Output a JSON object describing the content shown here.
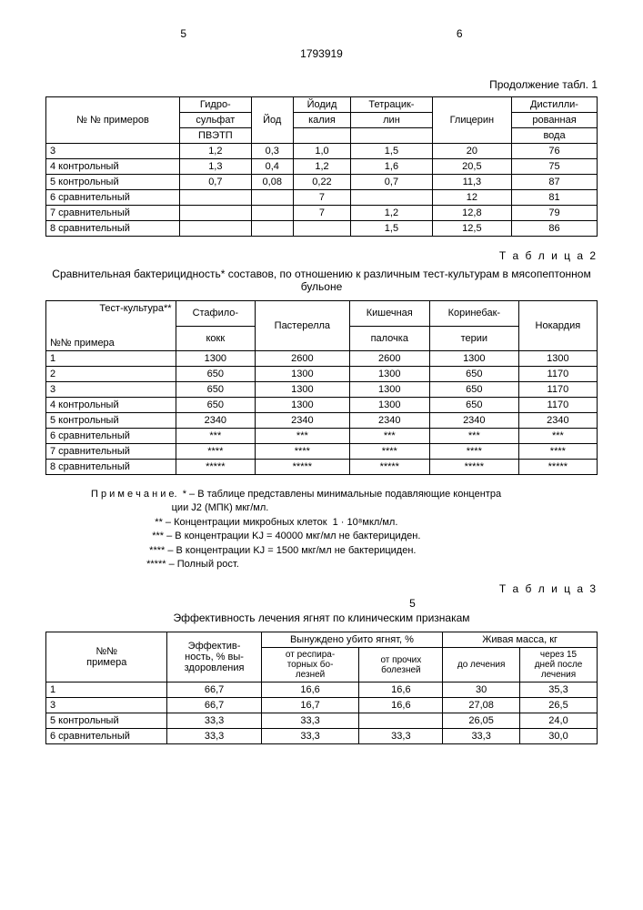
{
  "page": {
    "left_num": "5",
    "right_num": "6",
    "doc_id": "1793919",
    "continuation": "Продолжение табл. 1"
  },
  "table1": {
    "headers": {
      "col1": "№ № примеров",
      "col2_a": "Гидро-",
      "col2_b": "сульфат",
      "col2_c": "ПВЭТП",
      "col3": "Йод",
      "col4_a": "Йодид",
      "col4_b": "калия",
      "col5_a": "Тетрацик-",
      "col5_b": "лин",
      "col6": "Глицерин",
      "col7_a": "Дистилли-",
      "col7_b": "рованная",
      "col7_c": "вода"
    },
    "rows": [
      {
        "c1": "3",
        "c2": "1,2",
        "c3": "0,3",
        "c4": "1,0",
        "c5": "1,5",
        "c6": "20",
        "c7": "76"
      },
      {
        "c1": "4 контрольный",
        "c2": "1,3",
        "c3": "0,4",
        "c4": "1,2",
        "c5": "1,6",
        "c6": "20,5",
        "c7": "75"
      },
      {
        "c1": "5 контрольный",
        "c2": "0,7",
        "c3": "0,08",
        "c4": "0,22",
        "c5": "0,7",
        "c6": "11,3",
        "c7": "87"
      },
      {
        "c1": "6 сравнительный",
        "c2": "",
        "c3": "",
        "c4": "7",
        "c5": "",
        "c6": "12",
        "c7": "81"
      },
      {
        "c1": "7 сравнительный",
        "c2": "",
        "c3": "",
        "c4": "7",
        "c5": "1,2",
        "c6": "12,8",
        "c7": "79"
      },
      {
        "c1": "8 сравнительный",
        "c2": "",
        "c3": "",
        "c4": "",
        "c5": "1,5",
        "c6": "12,5",
        "c7": "86"
      }
    ]
  },
  "table2": {
    "label": "Т а б л и ц а 2",
    "caption": "Сравнительная  бактерицидность* составов,  по отношению к различным тест-культурам в мясопептонном бульоне",
    "diag_top": "Тест-культура**",
    "diag_bot": "№№ примера",
    "headers": {
      "c2_a": "Стафило-",
      "c2_b": "кокк",
      "c3": "Пастерелла",
      "c4_a": "Кишечная",
      "c4_b": "палочка",
      "c5_a": "Коринебак-",
      "c5_b": "терии",
      "c6": "Нокардия"
    },
    "rows": [
      {
        "c1": "1",
        "c2": "1300",
        "c3": "2600",
        "c4": "2600",
        "c5": "1300",
        "c6": "1300"
      },
      {
        "c1": "2",
        "c2": "650",
        "c3": "1300",
        "c4": "1300",
        "c5": "650",
        "c6": "1170"
      },
      {
        "c1": "3",
        "c2": "650",
        "c3": "1300",
        "c4": "1300",
        "c5": "650",
        "c6": "1170"
      },
      {
        "c1": "4 контрольный",
        "c2": "650",
        "c3": "1300",
        "c4": "1300",
        "c5": "650",
        "c6": "1170"
      },
      {
        "c1": "5 контрольный",
        "c2": "2340",
        "c3": "2340",
        "c4": "2340",
        "c5": "2340",
        "c6": "2340"
      },
      {
        "c1": "6 сравнительный",
        "c2": "***",
        "c3": "***",
        "c4": "***",
        "c5": "***",
        "c6": "***"
      },
      {
        "c1": "7 сравнительный",
        "c2": "****",
        "c3": "****",
        "c4": "****",
        "c5": "****",
        "c6": "****"
      },
      {
        "c1": "8 сравнительный",
        "c2": "*****",
        "c3": "*****",
        "c4": "*****",
        "c5": "*****",
        "c6": "*****"
      }
    ]
  },
  "notes": {
    "l1": "П р и м е ч а н и е.  * – В таблице представлены минимальные подавляющие концентра",
    "l2": "                             ции J2 (МПК) мкг/мл.",
    "l3": "                       ** – Концентрации микробных клеток  1 · 10⁸мкл/мл.",
    "l4": "                      *** – В концентрации KJ = 40000 мкг/мл не бактерициден.",
    "l5": "                     **** – В концентрации KJ = 1500 мкг/мл не бактерициден.",
    "l6": "                    ***** – Полный рост."
  },
  "table3": {
    "label": "Т а б л и ц а 3",
    "small5": "5",
    "caption": "Эффективность лечения ягнят по клиническим признакам",
    "headers": {
      "c1_a": "№№",
      "c1_b": "примера",
      "c2_a": "Эффектив-",
      "c2_b": "ность, % вы-",
      "c2_c": "здоровления",
      "c3_top": "Вынуждено убито ягнят, %",
      "c3a_a": "от респира-",
      "c3a_b": "торных бо-",
      "c3a_c": "лезней",
      "c3b_a": "от прочих",
      "c3b_b": "болезней",
      "c4_top": "Живая масса,  кг",
      "c4a": "до лечения",
      "c4b_a": "через 15",
      "c4b_b": "дней после",
      "c4b_c": "лечения"
    },
    "rows": [
      {
        "c1": "1",
        "c2": "66,7",
        "c3a": "16,6",
        "c3b": "16,6",
        "c4a": "30",
        "c4b": "35,3"
      },
      {
        "c1": "3",
        "c2": "66,7",
        "c3a": "16,7",
        "c3b": "16,6",
        "c4a": "27,08",
        "c4b": "26,5"
      },
      {
        "c1": "5 контрольный",
        "c2": "33,3",
        "c3a": "33,3",
        "c3b": "",
        "c4a": "26,05",
        "c4b": "24,0"
      },
      {
        "c1": "6 сравнительный",
        "c2": "33,3",
        "c3a": "33,3",
        "c3b": "33,3",
        "c4a": "33,3",
        "c4b": "30,0"
      }
    ]
  }
}
